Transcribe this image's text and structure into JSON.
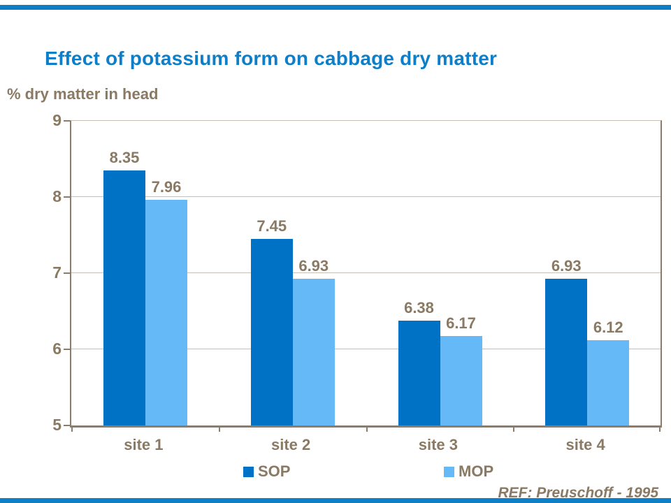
{
  "slide": {
    "reference": "REF: Preuschoff - 1995",
    "accent_bar_color": "#0E7EC5"
  },
  "chart_data": {
    "type": "bar",
    "title": "Effect of potassium form on cabbage dry matter",
    "ylabel": "% dry matter in head",
    "xlabel": "",
    "categories": [
      "site 1",
      "site 2",
      "site 3",
      "site 4"
    ],
    "series": [
      {
        "name": "SOP",
        "color": "#0072C6",
        "values": [
          8.35,
          7.45,
          6.38,
          6.93
        ]
      },
      {
        "name": "MOP",
        "color": "#66B9F7",
        "values": [
          7.96,
          6.93,
          6.17,
          6.12
        ]
      }
    ],
    "ylim": [
      5,
      9
    ],
    "yticks": [
      5,
      6,
      7,
      8,
      9
    ],
    "grid": true,
    "value_labels": true,
    "value_label_decimals": 2,
    "legend_position": "bottom",
    "colors": {
      "title": "#0F7EC8",
      "text": "#8A7A64",
      "axis": "#8C7D6B",
      "gridline": "#C8BFB2"
    }
  }
}
